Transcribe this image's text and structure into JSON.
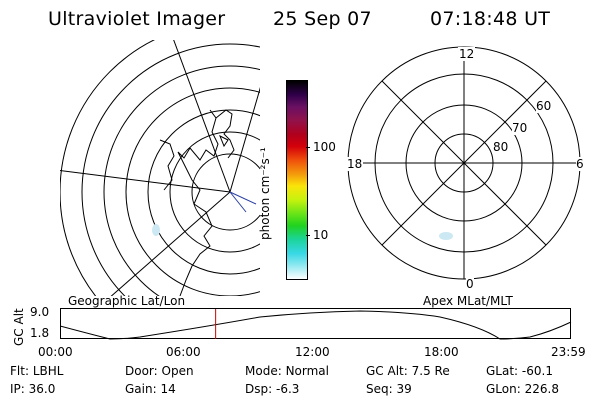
{
  "header": {
    "instrument": "Ultraviolet Imager",
    "date": "25 Sep 07",
    "time": "07:18:48 UT"
  },
  "colorbar": {
    "label": "photon cm⁻²s⁻¹",
    "ticks": [
      "100",
      "10"
    ],
    "colors": [
      "#000000",
      "#30004a",
      "#6a1063",
      "#92124a",
      "#b0001d",
      "#d4000a",
      "#f0500c",
      "#f49a0c",
      "#fbe40a",
      "#c6f20e",
      "#6ae417",
      "#21d21e",
      "#1cd49a",
      "#37d8e6",
      "#8ee8f0",
      "#ffffff"
    ]
  },
  "maps": {
    "geo_label": "Geographic Lat/Lon",
    "apex_label": "Apex MLat/MLT",
    "polar": {
      "mlt_labels": {
        "top": "12",
        "left": "18",
        "right": "6",
        "bottom": "0"
      },
      "lat_labels": [
        "60",
        "70",
        "80"
      ]
    }
  },
  "altitude_plot": {
    "ylabel": "GC Alt",
    "y_ticks": [
      "9.0",
      "1.8"
    ],
    "x_ticks": [
      "00:00",
      "06:00",
      "12:00",
      "18:00",
      "23:59"
    ],
    "current_time_hours": 7.31,
    "marker_color": "#cc0000"
  },
  "info": {
    "row1": [
      {
        "label": "Flt:",
        "value": "LBHL"
      },
      {
        "label": "Door:",
        "value": "Open"
      },
      {
        "label": "Mode:",
        "value": "Normal"
      },
      {
        "label": "GC Alt:",
        "value": "7.5 Re"
      },
      {
        "label": "GLat:",
        "value": "-60.1"
      }
    ],
    "row2": [
      {
        "label": "IP:",
        "value": "36.0"
      },
      {
        "label": "Gain:",
        "value": "14"
      },
      {
        "label": "Dsp:",
        "value": "-6.3"
      },
      {
        "label": "Seq:",
        "value": "39"
      },
      {
        "label": "GLon:",
        "value": "226.8"
      }
    ]
  }
}
